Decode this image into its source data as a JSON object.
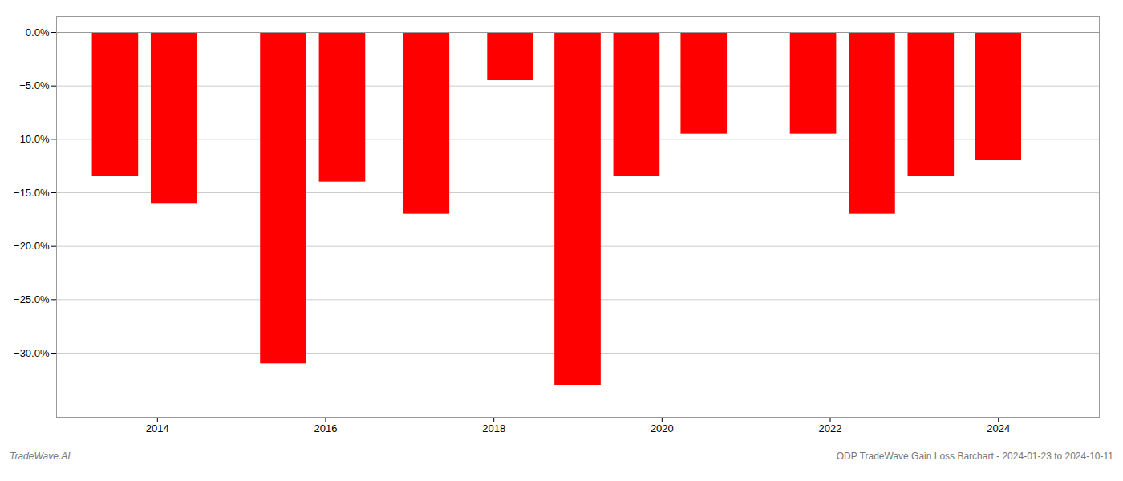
{
  "chart_data": {
    "type": "bar",
    "x": [
      2013.5,
      2014.2,
      2015.5,
      2016.2,
      2017.2,
      2018.2,
      2019.0,
      2019.7,
      2020.5,
      2021.8,
      2022.5,
      2023.2,
      2024.0
    ],
    "values": [
      -13.5,
      -16.0,
      -31.0,
      -14.0,
      -17.0,
      -4.5,
      -33.0,
      -13.5,
      -9.5,
      -9.5,
      -17.0,
      -13.5,
      -12.0
    ],
    "color": "#ff0000",
    "xlim": [
      2012.8,
      2025.2
    ],
    "xticks": [
      2014,
      2016,
      2018,
      2020,
      2022,
      2024
    ],
    "ylim": [
      -36,
      1.5
    ],
    "yticks": [
      {
        "value": 0,
        "label": "0.0%"
      },
      {
        "value": -5,
        "label": "−5.0%"
      },
      {
        "value": -10,
        "label": "−10.0%"
      },
      {
        "value": -15,
        "label": "−15.0%"
      },
      {
        "value": -20,
        "label": "−20.0%"
      },
      {
        "value": -25,
        "label": "−25.0%"
      },
      {
        "value": -30,
        "label": "−30.0%"
      }
    ],
    "grid": true,
    "annotations": [
      "TradeWave.AI",
      "ODP TradeWave Gain Loss Barchart - 2024-01-23 to 2024-10-11"
    ]
  }
}
